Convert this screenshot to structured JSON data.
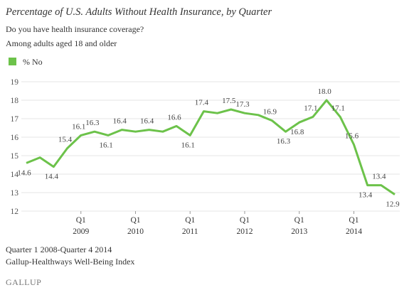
{
  "chart_data": {
    "type": "line",
    "title": "Percentage of U.S. Adults Without Health Insurance, by Quarter",
    "subtitle": [
      "Do you have health insurance coverage?",
      "Among adults aged 18 and older"
    ],
    "categories": [
      null,
      null,
      null,
      null,
      "Q1",
      null,
      null,
      null,
      "Q1",
      null,
      null,
      null,
      "Q1",
      null,
      null,
      null,
      "Q1",
      null,
      null,
      null,
      "Q1",
      null,
      null,
      null,
      "Q1",
      null,
      null,
      null
    ],
    "category_years": [
      null,
      null,
      null,
      null,
      "2009",
      null,
      null,
      null,
      "2010",
      null,
      null,
      null,
      "2011",
      null,
      null,
      null,
      "2012",
      null,
      null,
      null,
      "2013",
      null,
      null,
      null,
      "2014",
      null,
      null,
      null
    ],
    "series": [
      {
        "name": "% No",
        "color": "#6cc24a",
        "values": [
          14.6,
          14.9,
          14.4,
          15.4,
          16.1,
          16.3,
          16.1,
          16.4,
          16.3,
          16.4,
          16.3,
          16.6,
          16.1,
          17.4,
          17.3,
          17.5,
          17.3,
          17.2,
          16.9,
          16.3,
          16.8,
          17.1,
          18.0,
          17.1,
          15.6,
          13.4,
          13.4,
          12.9
        ],
        "value_labels": [
          "14.6",
          null,
          "14.4",
          "15.4",
          "16.1",
          "16.3",
          "16.1",
          "16.4",
          null,
          "16.4",
          null,
          "16.6",
          "16.1",
          "17.4",
          null,
          "17.5",
          "17.3",
          null,
          "16.9",
          "16.3",
          "16.8",
          "17.1",
          "18.0",
          "17.1",
          "15.6",
          "13.4",
          "13.4",
          "12.9"
        ]
      }
    ],
    "ylim": [
      12,
      19
    ],
    "yticks": [
      12,
      13,
      14,
      15,
      16,
      17,
      18,
      19
    ],
    "grid": true,
    "notes": [
      "Quarter 1 2008-Quarter 4 2014",
      "Gallup-Healthways Well-Being Index"
    ],
    "source_logo": "GALLUP"
  }
}
